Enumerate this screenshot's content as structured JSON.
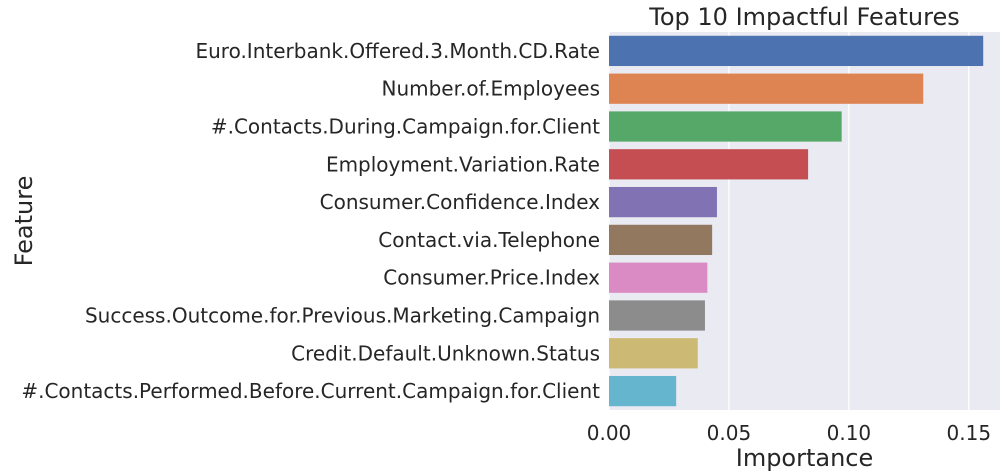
{
  "chart_data": {
    "type": "bar",
    "orientation": "horizontal",
    "title": "Top 10 Impactful Features",
    "xlabel": "Importance",
    "ylabel": "Feature",
    "xlim": [
      0,
      0.163
    ],
    "xticks": [
      0.0,
      0.05,
      0.1,
      0.15
    ],
    "xtick_labels": [
      "0.00",
      "0.05",
      "0.10",
      "0.15"
    ],
    "grid": true,
    "background": "#eaeaf2",
    "grid_color": "#ffffff",
    "categories": [
      "Euro.Interbank.Offered.3.Month.CD.Rate",
      "Number.of.Employees",
      "#.Contacts.During.Campaign.for.Client",
      "Employment.Variation.Rate",
      "Consumer.Confidence.Index",
      "Contact.via.Telephone",
      "Consumer.Price.Index",
      "Success.Outcome.for.Previous.Marketing.Campaign",
      "Credit.Default.Unknown.Status",
      "#.Contacts.Performed.Before.Current.Campaign.for.Client"
    ],
    "values": [
      0.156,
      0.131,
      0.097,
      0.083,
      0.045,
      0.043,
      0.041,
      0.04,
      0.037,
      0.028
    ],
    "colors": [
      "#4c72b0",
      "#dd8452",
      "#55a868",
      "#c44e52",
      "#8172b3",
      "#937860",
      "#da8bc3",
      "#8c8c8c",
      "#ccb974",
      "#64b5cd"
    ]
  }
}
